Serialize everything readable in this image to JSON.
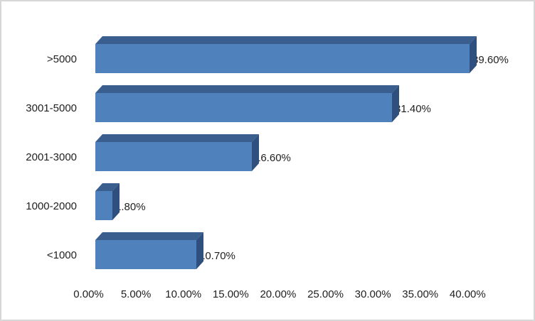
{
  "chart": {
    "title": "",
    "colors": {
      "bar_front": "#4f81bd",
      "bar_top": "#3a5f8e",
      "bar_side": "#2f507e",
      "text": "#1f1f1f",
      "frame_border": "#d7d7d7",
      "background": "#ffffff"
    }
  },
  "chart_data": {
    "type": "bar",
    "orientation": "horizontal",
    "style": "3d",
    "title": "",
    "xlabel": "",
    "ylabel": "",
    "categories": [
      ">5000",
      "3001-5000",
      "2001-3000",
      "1000-2000",
      "<1000"
    ],
    "values": [
      39.6,
      31.4,
      16.6,
      1.8,
      10.7
    ],
    "data_labels": [
      "39.60%",
      "31.40%",
      "16.60%",
      "1.80%",
      "10.70%"
    ],
    "x_ticks": [
      "0.00%",
      "5.00%",
      "10.00%",
      "15.00%",
      "20.00%",
      "25.00%",
      "30.00%",
      "35.00%",
      "40.00%"
    ],
    "xlim": [
      0,
      40
    ],
    "grid": false,
    "legend": "none"
  }
}
